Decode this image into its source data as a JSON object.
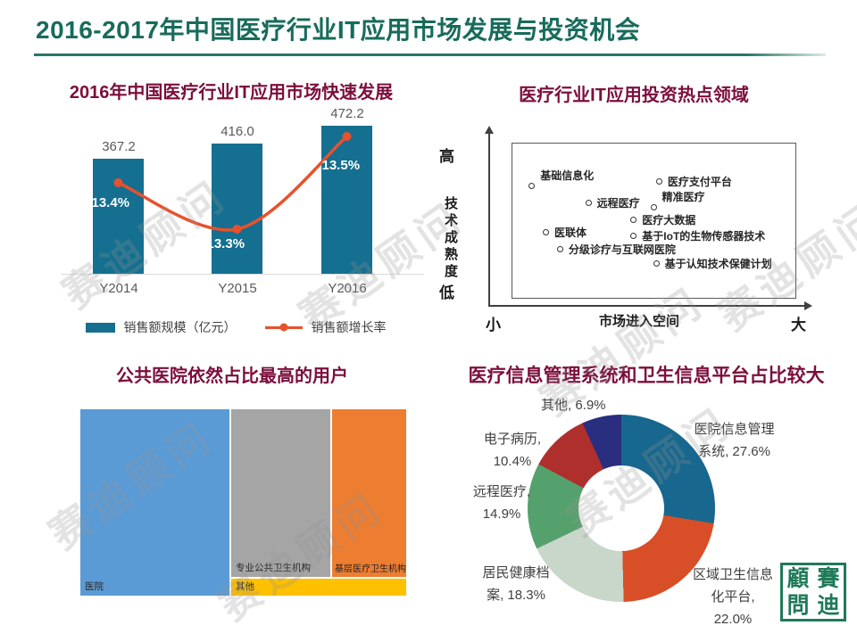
{
  "slide": {
    "title": "2016-2017年中国医疗行业IT应用市场发展与投资机会"
  },
  "watermark": {
    "text": "赛迪顾问"
  },
  "logo": {
    "chars": [
      "顧",
      "賽",
      "問",
      "迪"
    ]
  },
  "chart_data": [
    {
      "type": "bar",
      "title": "2016年中国医疗行业IT应用市场快速发展",
      "categories": [
        "Y2014",
        "Y2015",
        "Y2016"
      ],
      "series": [
        {
          "name": "销售额规模（亿元）",
          "kind": "bar",
          "values": [
            367.2,
            416.0,
            472.2
          ]
        },
        {
          "name": "销售额增长率",
          "kind": "line",
          "values": [
            13.4,
            13.3,
            13.5
          ]
        }
      ],
      "bar_value_labels": [
        "367.2",
        "416.0",
        "472.2"
      ],
      "growth_labels": [
        "13.4%",
        "13.3%",
        "13.5%"
      ],
      "legend_position": "bottom",
      "colors": {
        "bar": "#146F90",
        "line": "#E8512D"
      }
    },
    {
      "type": "scatter",
      "title": "医疗行业IT应用投资热点领域",
      "y_axis": {
        "label": "技术成熟度",
        "top": "高",
        "bottom": "低"
      },
      "x_axis": {
        "label": "市场进入空间",
        "left": "小",
        "right": "大"
      },
      "points": [
        {
          "label": "基础信息化",
          "x": 7,
          "y": 75,
          "label_pos": "above-right"
        },
        {
          "label": "医疗支付平台",
          "x": 52,
          "y": 78,
          "label_pos": "right"
        },
        {
          "label": "远程医疗",
          "x": 27,
          "y": 64,
          "label_pos": "right"
        },
        {
          "label": "精准医疗",
          "x": 50,
          "y": 61,
          "label_pos": "above-right"
        },
        {
          "label": "医疗大数据",
          "x": 43,
          "y": 53,
          "label_pos": "right"
        },
        {
          "label": "医联体",
          "x": 12,
          "y": 45,
          "label_pos": "right"
        },
        {
          "label": "基于IoT的生物传感器技术",
          "x": 43,
          "y": 43,
          "label_pos": "right"
        },
        {
          "label": "分级诊疗与互联网医院",
          "x": 17,
          "y": 34,
          "label_pos": "right"
        },
        {
          "label": "基于认知技术保健计划",
          "x": 51,
          "y": 25,
          "label_pos": "right"
        }
      ]
    },
    {
      "type": "treemap",
      "title": "公共医院依然占比最高的用户",
      "items": [
        {
          "label": "医院",
          "color": "#5B9BD5",
          "area_pct_est": 48
        },
        {
          "label": "专业公共卫生机构",
          "color": "#A5A5A5",
          "area_pct_est": 25
        },
        {
          "label": "基层医疗卫生机构",
          "color": "#ED7D31",
          "area_pct_est": 20
        },
        {
          "label": "其他",
          "color": "#FFC000",
          "area_pct_est": 7
        }
      ]
    },
    {
      "type": "pie",
      "donut": true,
      "title": "医疗信息管理系统和卫生信息平台占比较大",
      "labels": [
        "医院信息管理系统",
        "区域卫生信息化平台",
        "居民健康档案",
        "远程医疗",
        "电子病历",
        "其他"
      ],
      "values": [
        27.6,
        22.0,
        18.3,
        14.9,
        10.4,
        6.9
      ],
      "colors": [
        "#17678E",
        "#D84E27",
        "#C9D6CA",
        "#55A16D",
        "#AF2F2C",
        "#2A2E7F"
      ],
      "callouts": [
        {
          "text": "其他, 6.9%"
        },
        {
          "text": "医院信息管理\n系统, 27.6%"
        },
        {
          "text": "电子病历,\n10.4%"
        },
        {
          "text": "远程医疗,\n14.9%"
        },
        {
          "text": "居民健康档\n案, 18.3%"
        },
        {
          "text": "区域卫生信息\n化平台,\n22.0%"
        }
      ]
    }
  ]
}
